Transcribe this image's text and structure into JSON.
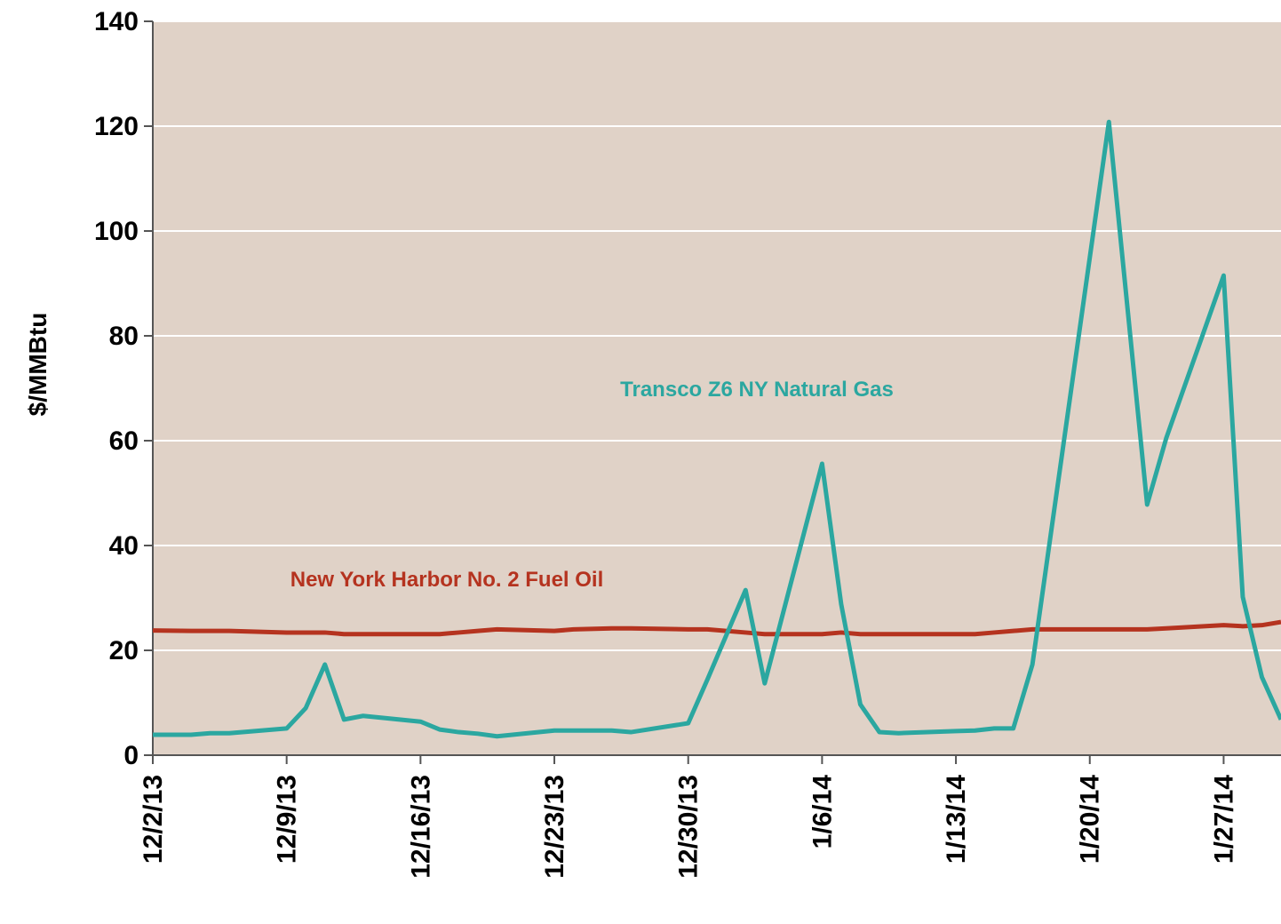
{
  "chart_data": {
    "type": "line",
    "y_label": "$/MMBtu",
    "x": [
      "12/2/13",
      "12/4/13",
      "12/5/13",
      "12/6/13",
      "12/9/13",
      "12/10/13",
      "12/11/13",
      "12/12/13",
      "12/13/13",
      "12/16/13",
      "12/17/13",
      "12/18/13",
      "12/19/13",
      "12/20/13",
      "12/23/13",
      "12/24/13",
      "12/26/13",
      "12/27/13",
      "12/30/13",
      "12/31/13",
      "1/2/14",
      "1/3/14",
      "1/6/14",
      "1/7/14",
      "1/8/14",
      "1/9/14",
      "1/10/14",
      "1/13/14",
      "1/14/14",
      "1/15/14",
      "1/16/14",
      "1/17/14",
      "1/21/14",
      "1/23/14",
      "1/24/14",
      "1/27/14",
      "1/28/14",
      "1/29/14",
      "1/30/14"
    ],
    "series": [
      {
        "name": "Transco Z6 NY Natural Gas",
        "color": "#2ba7a0",
        "values": [
          3.9,
          3.9,
          4.2,
          4.2,
          5.1,
          9,
          17.3,
          6.8,
          7.5,
          6.4,
          4.9,
          4.4,
          4.1,
          3.6,
          4.7,
          4.7,
          4.7,
          4.4,
          6.1,
          14.4,
          31.5,
          13.7,
          55.6,
          28.8,
          9.7,
          4.4,
          4.2,
          4.6,
          4.7,
          5.1,
          5.1,
          17.3,
          120.8,
          47.8,
          60.5,
          91.5,
          30.2,
          14.9,
          6.8
        ]
      },
      {
        "name": "New York Harbor No. 2 Fuel Oil",
        "color": "#b5331f",
        "values": [
          23.8,
          23.7,
          23.7,
          23.7,
          23.4,
          23.4,
          23.4,
          23.1,
          23.1,
          23.1,
          23.1,
          23.4,
          23.7,
          24.0,
          23.7,
          24.0,
          24.2,
          24.2,
          24.0,
          24.0,
          23.4,
          23.1,
          23.1,
          23.4,
          23.1,
          23.1,
          23.1,
          23.1,
          23.1,
          23.4,
          23.7,
          24.0,
          24.0,
          24.0,
          24.2,
          24.8,
          24.6,
          24.8,
          25.4
        ]
      }
    ],
    "xlim": [
      "12/2/13",
      "1/30/14"
    ],
    "xticks": [
      "12/2/13",
      "12/9/13",
      "12/16/13",
      "12/23/13",
      "12/30/13",
      "1/6/14",
      "1/13/14",
      "1/20/14",
      "1/27/14"
    ],
    "ylim": [
      0,
      140
    ],
    "yticks": [
      0,
      20,
      40,
      60,
      80,
      100,
      120,
      140
    ],
    "grid": true,
    "plot_background": "#e0d2c7"
  }
}
